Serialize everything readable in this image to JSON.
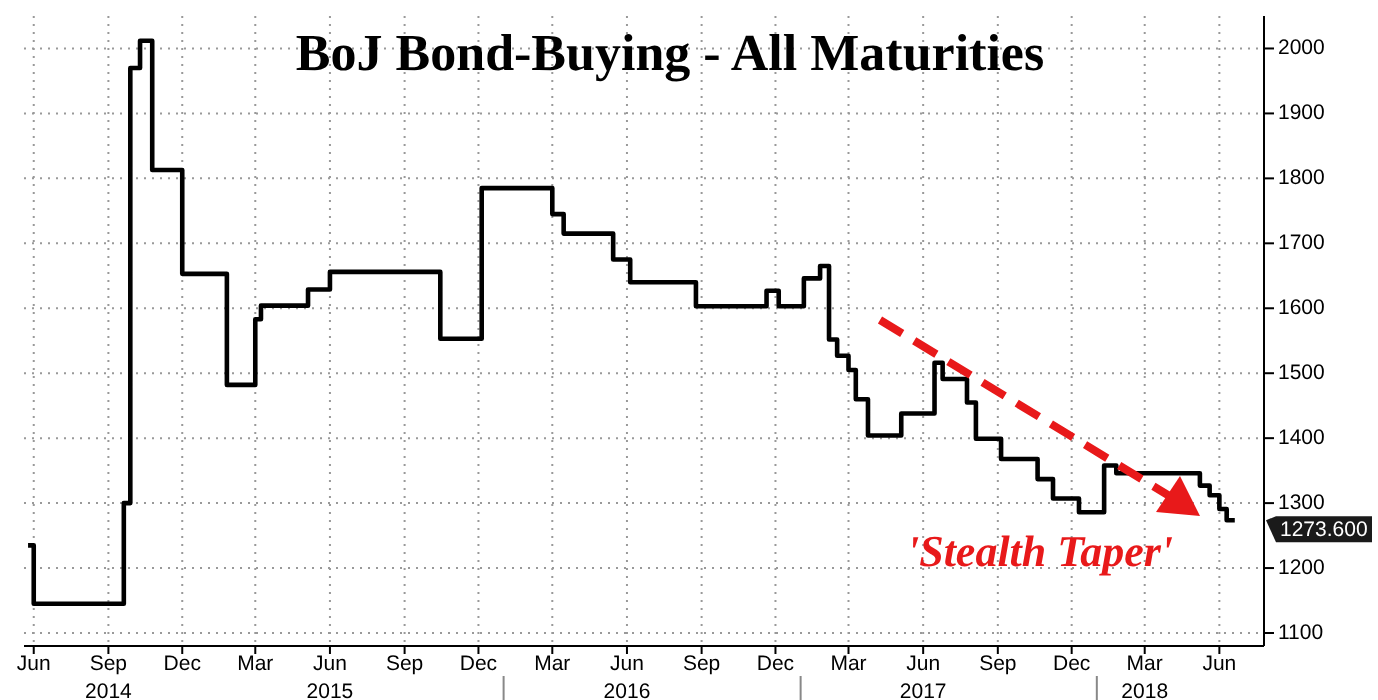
{
  "chart_data": {
    "type": "step",
    "title": "BoJ Bond-Buying - All Maturities",
    "x": [
      "2014-05-25",
      "2014-06-01",
      "2014-09-20",
      "2014-09-28",
      "2014-10-10",
      "2014-10-25",
      "2014-12-01",
      "2015-01-25",
      "2015-03-01",
      "2015-03-08",
      "2015-05-05",
      "2015-06-01",
      "2015-10-15",
      "2015-12-05",
      "2016-03-01",
      "2016-03-15",
      "2016-05-15",
      "2016-06-05",
      "2016-08-25",
      "2016-11-20",
      "2016-12-05",
      "2017-01-05",
      "2017-01-25",
      "2017-02-05",
      "2017-02-15",
      "2017-03-01",
      "2017-03-10",
      "2017-03-25",
      "2017-05-05",
      "2017-06-15",
      "2017-06-25",
      "2017-07-25",
      "2017-08-05",
      "2017-09-05",
      "2017-10-20",
      "2017-11-08",
      "2017-12-10",
      "2018-01-10",
      "2018-01-25",
      "2018-05-08",
      "2018-05-20",
      "2018-06-01",
      "2018-06-10",
      "2018-06-20"
    ],
    "series": [
      {
        "color": "#000000",
        "values": [
          1235,
          1145,
          1300,
          1970,
          2012,
          1813,
          1653,
          1482,
          1583,
          1604,
          1629,
          1656,
          1553,
          1785,
          1745,
          1715,
          1675,
          1640,
          1603,
          1627,
          1603,
          1646,
          1665,
          1552,
          1527,
          1505,
          1460,
          1404,
          1438,
          1516,
          1491,
          1455,
          1399,
          1368,
          1337,
          1307,
          1286,
          1358,
          1346,
          1327,
          1312,
          1291,
          1273.6,
          1273.6
        ]
      }
    ],
    "xlim": [
      "2014-05-20",
      "2018-07-26"
    ],
    "xticks": [
      {
        "value": "2014-06-01",
        "label": "Jun"
      },
      {
        "value": "2014-09-01",
        "label": "Sep\n2014"
      },
      {
        "value": "2014-12-01",
        "label": "Dec"
      },
      {
        "value": "2015-03-01",
        "label": "Mar"
      },
      {
        "value": "2015-06-01",
        "label": "Jun\n2015"
      },
      {
        "value": "2015-09-01",
        "label": "Sep"
      },
      {
        "value": "2015-12-01",
        "label": "Dec"
      },
      {
        "value": "2016-03-01",
        "label": "Mar"
      },
      {
        "value": "2016-06-01",
        "label": "Jun\n2016"
      },
      {
        "value": "2016-09-01",
        "label": "Sep"
      },
      {
        "value": "2016-12-01",
        "label": "Dec"
      },
      {
        "value": "2017-03-01",
        "label": "Mar"
      },
      {
        "value": "2017-06-01",
        "label": "Jun\n2017"
      },
      {
        "value": "2017-09-01",
        "label": "Sep"
      },
      {
        "value": "2017-12-01",
        "label": "Dec"
      },
      {
        "value": "2018-03-01",
        "label": "Mar\n2018"
      },
      {
        "value": "2018-06-01",
        "label": "Jun"
      }
    ],
    "ylim": [
      1080,
      2050
    ],
    "yticks": [
      1100,
      1200,
      1300,
      1400,
      1500,
      1600,
      1700,
      1800,
      1900,
      2000
    ],
    "grid": true,
    "annotations": [
      "'Stealth Taper'",
      "1273.600"
    ]
  }
}
